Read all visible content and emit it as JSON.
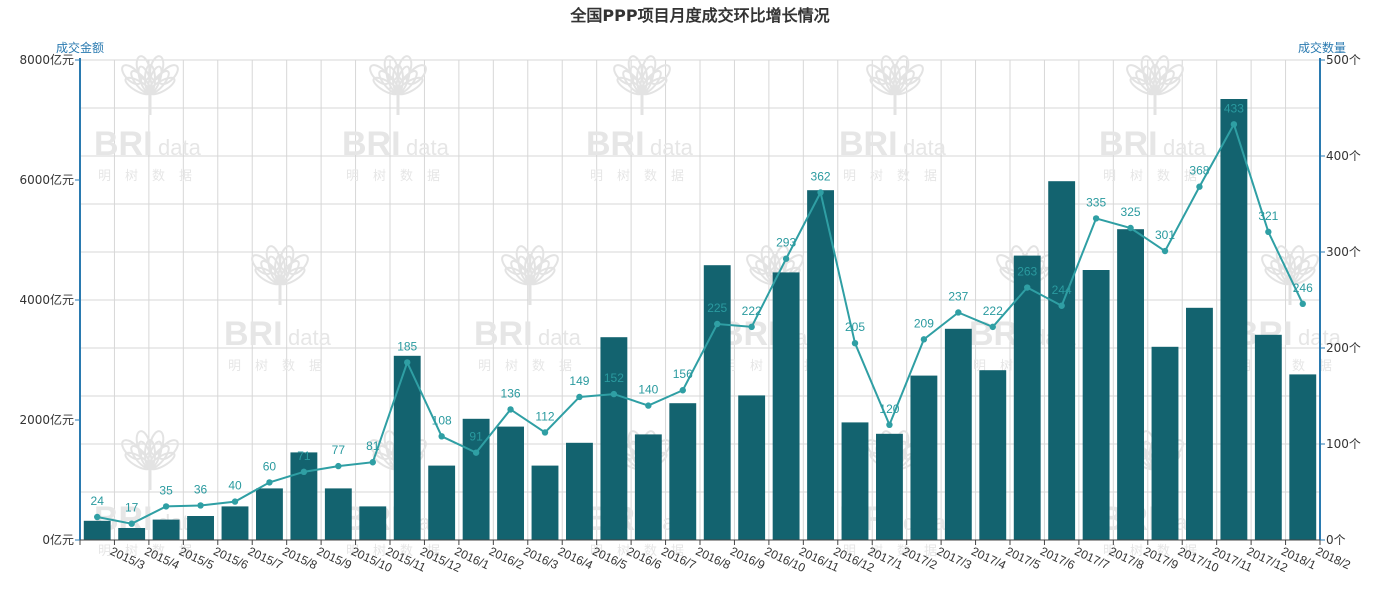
{
  "chart_data": {
    "type": "bar+line",
    "title": "全国PPP项目月度成交环比增长情况",
    "left_axis_title": "成交金额",
    "right_axis_title": "成交数量",
    "left_axis": {
      "min": 0,
      "max": 8000,
      "ticks": [
        "0亿元",
        "2000亿元",
        "4000亿元",
        "6000亿元",
        "8000亿元"
      ],
      "tick_values": [
        0,
        2000,
        4000,
        6000,
        8000
      ]
    },
    "right_axis": {
      "min": 0,
      "max": 500,
      "ticks": [
        "0个",
        "100个",
        "200个",
        "300个",
        "400个",
        "500个"
      ],
      "tick_values": [
        0,
        100,
        200,
        300,
        400,
        500
      ]
    },
    "categories": [
      "2015/3",
      "2015/4",
      "2015/5",
      "2015/6",
      "2015/7",
      "2015/8",
      "2015/9",
      "2015/10",
      "2015/11",
      "2015/12",
      "2016/1",
      "2016/2",
      "2016/3",
      "2016/4",
      "2016/5",
      "2016/6",
      "2016/7",
      "2016/8",
      "2016/9",
      "2016/10",
      "2016/11",
      "2016/12",
      "2017/1",
      "2017/2",
      "2017/3",
      "2017/4",
      "2017/5",
      "2017/6",
      "2017/7",
      "2017/8",
      "2017/9",
      "2017/10",
      "2017/11",
      "2017/12",
      "2018/1",
      "2018/2"
    ],
    "series": [
      {
        "kind": "bar",
        "axis": "left",
        "values": [
          320,
          200,
          340,
          400,
          560,
          860,
          1460,
          860,
          560,
          3070,
          1240,
          2020,
          1890,
          1240,
          1620,
          3380,
          1760,
          2280,
          4580,
          2410,
          4460,
          5830,
          1960,
          1770,
          2740,
          3520,
          2830,
          4740,
          5980,
          4500,
          5180,
          3220,
          3870,
          7350,
          3420,
          2760
        ]
      },
      {
        "kind": "line",
        "axis": "right",
        "values": [
          24,
          17,
          35,
          36,
          40,
          60,
          71,
          77,
          81,
          185,
          108,
          91,
          136,
          112,
          149,
          152,
          140,
          156,
          225,
          222,
          293,
          362,
          205,
          120,
          209,
          237,
          222,
          263,
          244,
          335,
          325,
          301,
          368,
          433,
          321,
          246
        ]
      }
    ],
    "colors": {
      "bar": "#13636f",
      "line": "#2f9fa4",
      "axis": "#2a7ab0",
      "grid": "#d7d7d7"
    },
    "grid": true,
    "watermark": {
      "logo_text": "BRI",
      "logo_suffix": "data",
      "logo_subtitle": "明树数据"
    }
  }
}
